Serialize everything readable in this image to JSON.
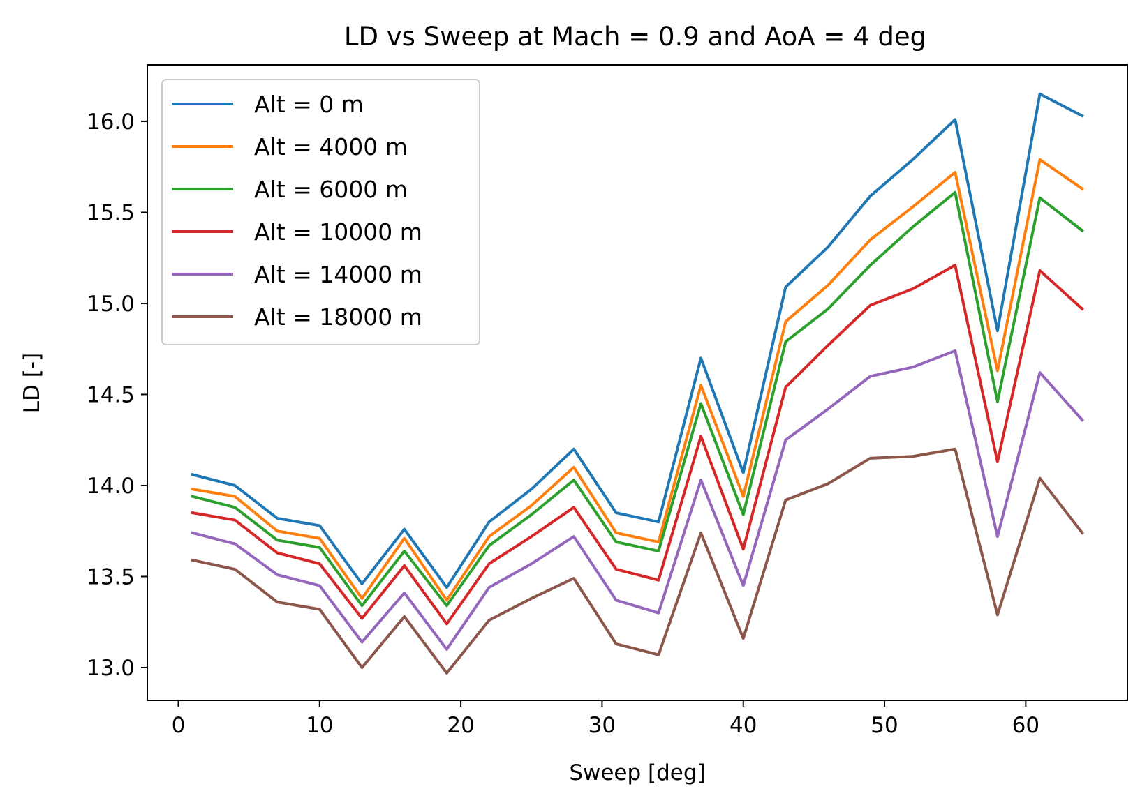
{
  "chart_data": {
    "type": "line",
    "title": "LD vs Sweep at Mach = 0.9 and AoA = 4 deg",
    "xlabel": "Sweep [deg]",
    "ylabel": "LD [-]",
    "xlim": [
      -2.2,
      67.2
    ],
    "ylim": [
      12.82,
      16.31
    ],
    "xticks": [
      0,
      10,
      20,
      30,
      40,
      50,
      60
    ],
    "yticks": [
      13.0,
      13.5,
      14.0,
      14.5,
      15.0,
      15.5,
      16.0
    ],
    "xtick_labels": [
      "0",
      "10",
      "20",
      "30",
      "40",
      "50",
      "60"
    ],
    "ytick_labels": [
      "13.0",
      "13.5",
      "14.0",
      "14.5",
      "15.0",
      "15.5",
      "16.0"
    ],
    "grid": false,
    "legend_position": "top-left",
    "x": [
      1,
      4,
      7,
      10,
      13,
      16,
      19,
      22,
      25,
      28,
      31,
      34,
      37,
      40,
      43,
      46,
      49,
      52,
      55,
      58,
      61,
      64
    ],
    "series": [
      {
        "name": "Alt = 0 m",
        "color": "#1f77b4",
        "values": [
          14.06,
          14.0,
          13.82,
          13.78,
          13.46,
          13.76,
          13.44,
          13.8,
          13.98,
          14.2,
          13.85,
          13.8,
          14.7,
          14.07,
          15.09,
          15.31,
          15.59,
          15.79,
          16.01,
          14.85,
          16.15,
          16.03
        ]
      },
      {
        "name": "Alt = 4000 m",
        "color": "#ff7f0e",
        "values": [
          13.98,
          13.94,
          13.75,
          13.71,
          13.38,
          13.71,
          13.37,
          13.72,
          13.89,
          14.1,
          13.74,
          13.69,
          14.55,
          13.94,
          14.9,
          15.1,
          15.35,
          15.53,
          15.72,
          14.63,
          15.79,
          15.63
        ]
      },
      {
        "name": "Alt = 6000 m",
        "color": "#2ca02c",
        "values": [
          13.94,
          13.88,
          13.7,
          13.66,
          13.34,
          13.64,
          13.34,
          13.67,
          13.84,
          14.03,
          13.69,
          13.64,
          14.45,
          13.84,
          14.79,
          14.97,
          15.21,
          15.42,
          15.61,
          14.46,
          15.58,
          15.4
        ]
      },
      {
        "name": "Alt = 10000 m",
        "color": "#d62728",
        "values": [
          13.85,
          13.81,
          13.63,
          13.57,
          13.27,
          13.56,
          13.24,
          13.57,
          13.72,
          13.88,
          13.54,
          13.48,
          14.27,
          13.65,
          14.54,
          14.77,
          14.99,
          15.08,
          15.21,
          14.13,
          15.18,
          14.97
        ]
      },
      {
        "name": "Alt = 14000 m",
        "color": "#9467bd",
        "values": [
          13.74,
          13.68,
          13.51,
          13.45,
          13.14,
          13.41,
          13.1,
          13.44,
          13.57,
          13.72,
          13.37,
          13.3,
          14.03,
          13.45,
          14.25,
          14.42,
          14.6,
          14.65,
          14.74,
          13.72,
          14.62,
          14.36
        ]
      },
      {
        "name": "Alt = 18000 m",
        "color": "#8c564b",
        "values": [
          13.59,
          13.54,
          13.36,
          13.32,
          13.0,
          13.28,
          12.97,
          13.26,
          13.38,
          13.49,
          13.13,
          13.07,
          13.74,
          13.16,
          13.92,
          14.01,
          14.15,
          14.16,
          14.2,
          13.29,
          14.04,
          13.74
        ]
      }
    ]
  }
}
